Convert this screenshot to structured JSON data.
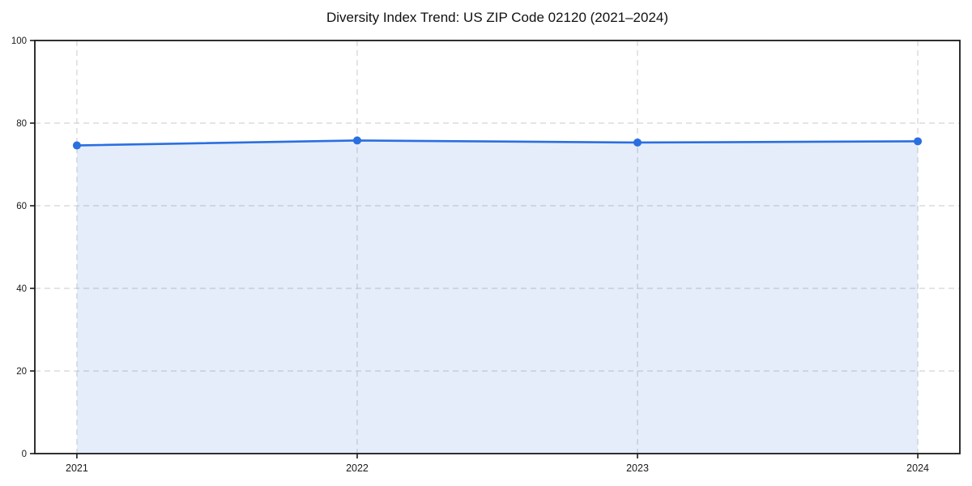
{
  "chart_data": {
    "type": "line",
    "title": "Diversity Index Trend: US ZIP Code 02120 (2021–2024)",
    "categories": [
      "2021",
      "2022",
      "2023",
      "2024"
    ],
    "x": [
      2021,
      2022,
      2023,
      2024
    ],
    "series": [
      {
        "name": "Diversity Index",
        "values": [
          74.6,
          75.8,
          75.3,
          75.6
        ]
      }
    ],
    "xlabel": "",
    "ylabel": "",
    "ylim": [
      0,
      100
    ],
    "yticks": [
      0,
      20,
      40,
      60,
      80,
      100
    ],
    "grid": true,
    "grid_style": "dashed",
    "area_fill": true,
    "fill_opacity": 0.12,
    "legend": "none",
    "colors": {
      "line": "#2a6fe0",
      "marker": "#2a6fe0",
      "fill": "#2a6fe0",
      "grid": "#cfcfcf",
      "axis": "#1a1a1a",
      "tick_label": "#1a1a1a",
      "background": "#ffffff"
    }
  }
}
